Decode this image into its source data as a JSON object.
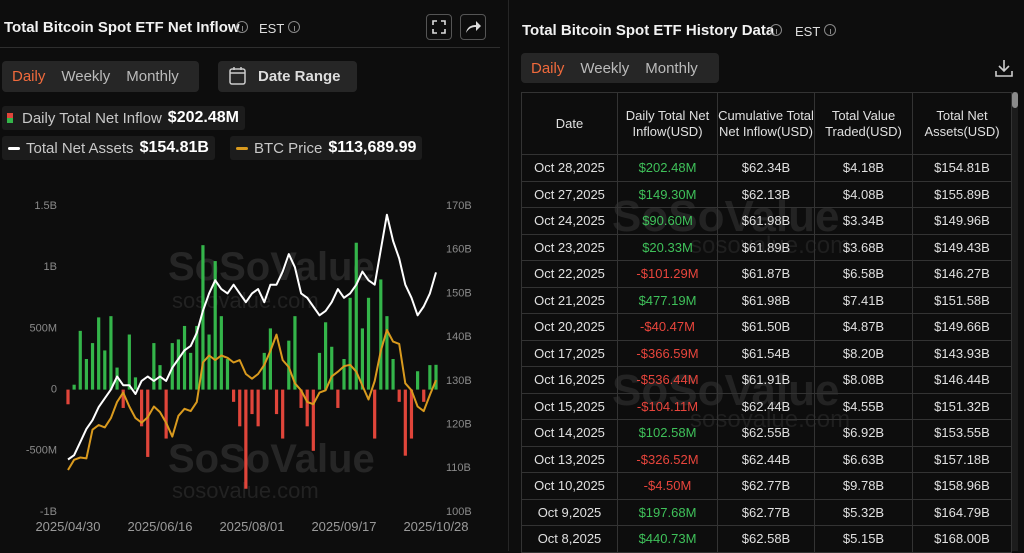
{
  "left_panel": {
    "title": "Total Bitcoin Spot ETF Net Inflow",
    "timezone": "EST",
    "tabs": [
      "Daily",
      "Weekly",
      "Monthly"
    ],
    "date_range": "Date Range"
  },
  "chart_data": {
    "type": "combo",
    "watermark": "SoSoValue",
    "watermark_url": "sosovalue.com",
    "categories": [
      "2025/04/30",
      null,
      null,
      null,
      null,
      null,
      null,
      null,
      null,
      null,
      null,
      null,
      null,
      null,
      null,
      "2025/06/16",
      null,
      null,
      null,
      null,
      null,
      null,
      null,
      null,
      null,
      null,
      null,
      null,
      null,
      null,
      "2025/08/01",
      null,
      null,
      null,
      null,
      null,
      null,
      null,
      null,
      null,
      null,
      null,
      null,
      null,
      null,
      "2025/09/17",
      null,
      null,
      null,
      null,
      null,
      null,
      null,
      null,
      null,
      null,
      null,
      null,
      null,
      null,
      "2025/10/28"
    ],
    "ylim": [
      -1000,
      1500
    ],
    "yticks": [
      {
        "value": -1000,
        "label": "-1B"
      },
      {
        "value": -500,
        "label": "-500M"
      },
      0,
      {
        "value": 500,
        "label": "500M"
      },
      {
        "value": 1000,
        "label": "1B"
      },
      {
        "value": 1500,
        "label": "1.5B"
      }
    ],
    "y2lim": [
      100,
      170
    ],
    "y2ticks": [
      {
        "value": 100,
        "label": "100B"
      },
      {
        "value": 110,
        "label": "110B"
      },
      {
        "value": 120,
        "label": "120B"
      },
      {
        "value": 130,
        "label": "130B"
      },
      {
        "value": 140,
        "label": "140B"
      },
      {
        "value": 150,
        "label": "150B"
      },
      {
        "value": 160,
        "label": "160B"
      },
      {
        "value": 170,
        "label": "170B"
      }
    ],
    "series": [
      {
        "name": "Daily Total Net Inflow",
        "legend_value": "$202.48M",
        "type": "bar",
        "axis": "y",
        "color": "#34b54a",
        "negative_color": "#e0453a",
        "values": [
          -120,
          40,
          480,
          250,
          380,
          590,
          320,
          600,
          180,
          -150,
          450,
          100,
          -300,
          -550,
          380,
          200,
          -400,
          380,
          410,
          520,
          300,
          520,
          1180,
          450,
          1050,
          600,
          250,
          -100,
          -300,
          -810,
          -200,
          -300,
          300,
          500,
          -200,
          -400,
          400,
          600,
          -150,
          -300,
          -500,
          300,
          550,
          350,
          -150,
          250,
          750,
          1200,
          500,
          750,
          -400,
          900,
          600,
          250,
          -100,
          -540,
          -400,
          150,
          -100,
          200,
          202.48
        ]
      },
      {
        "name": "Total Net Assets",
        "legend_value": "$154.81B",
        "type": "line",
        "axis": "y2",
        "color": "#ffffff",
        "values": [
          112,
          113,
          116,
          119,
          121,
          124,
          126,
          128,
          131,
          129,
          129,
          127,
          130,
          131,
          130,
          131,
          130,
          133,
          135,
          137,
          138,
          141,
          146,
          150,
          153,
          151,
          150,
          152,
          150,
          148,
          150,
          151,
          148,
          152,
          152,
          155,
          159,
          156,
          150,
          149,
          147,
          145,
          146,
          148,
          151,
          149,
          150,
          152,
          155,
          153,
          152,
          160,
          168,
          162,
          158,
          152,
          149,
          145,
          147,
          150,
          154.81
        ]
      },
      {
        "name": "BTC Price",
        "legend_value": "$113,689.99",
        "type": "line",
        "color": "#d99a1e",
        "values": [
          94300,
          96500,
          97000,
          96800,
          103000,
          104000,
          103500,
          105500,
          109000,
          111000,
          108000,
          105500,
          104500,
          105700,
          108000,
          106800,
          104500,
          101500,
          106000,
          107500,
          107000,
          109000,
          117500,
          119000,
          118000,
          119000,
          118500,
          117500,
          118000,
          115000,
          114000,
          115000,
          117000,
          120000,
          123500,
          118000,
          116500,
          113000,
          111500,
          109000,
          108500,
          111000,
          111500,
          114500,
          115500,
          116700,
          117000,
          115500,
          112500,
          109500,
          113500,
          120000,
          124500,
          122000,
          121500,
          113000,
          111500,
          108000,
          107000,
          110500,
          113689.99
        ]
      }
    ]
  },
  "table": {
    "title": "Total Bitcoin Spot ETF History Data",
    "timezone": "EST",
    "tabs": [
      "Daily",
      "Weekly",
      "Monthly"
    ],
    "columns": [
      "Date",
      "Daily Total Net Inflow(USD)",
      "Cumulative Total Net Inflow(USD)",
      "Total Value Traded(USD)",
      "Total Net Assets(USD)"
    ],
    "rows": [
      [
        "Oct 28,2025",
        "$202.48M",
        "$62.34B",
        "$4.18B",
        "$154.81B"
      ],
      [
        "Oct 27,2025",
        "$149.30M",
        "$62.13B",
        "$4.08B",
        "$155.89B"
      ],
      [
        "Oct 24,2025",
        "$90.60M",
        "$61.98B",
        "$3.34B",
        "$149.96B"
      ],
      [
        "Oct 23,2025",
        "$20.33M",
        "$61.89B",
        "$3.68B",
        "$149.43B"
      ],
      [
        "Oct 22,2025",
        "-$101.29M",
        "$61.87B",
        "$6.58B",
        "$146.27B"
      ],
      [
        "Oct 21,2025",
        "$477.19M",
        "$61.98B",
        "$7.41B",
        "$151.58B"
      ],
      [
        "Oct 20,2025",
        "-$40.47M",
        "$61.50B",
        "$4.87B",
        "$149.66B"
      ],
      [
        "Oct 17,2025",
        "-$366.59M",
        "$61.54B",
        "$8.20B",
        "$143.93B"
      ],
      [
        "Oct 16,2025",
        "-$536.44M",
        "$61.91B",
        "$8.08B",
        "$146.44B"
      ],
      [
        "Oct 15,2025",
        "-$104.11M",
        "$62.44B",
        "$4.55B",
        "$151.32B"
      ],
      [
        "Oct 14,2025",
        "$102.58M",
        "$62.55B",
        "$6.92B",
        "$153.55B"
      ],
      [
        "Oct 13,2025",
        "-$326.52M",
        "$62.44B",
        "$6.63B",
        "$157.18B"
      ],
      [
        "Oct 10,2025",
        "-$4.50M",
        "$62.77B",
        "$9.78B",
        "$158.96B"
      ],
      [
        "Oct 9,2025",
        "$197.68M",
        "$62.77B",
        "$5.32B",
        "$164.79B"
      ],
      [
        "Oct 8,2025",
        "$440.73M",
        "$62.58B",
        "$5.15B",
        "$168.00B"
      ]
    ]
  }
}
